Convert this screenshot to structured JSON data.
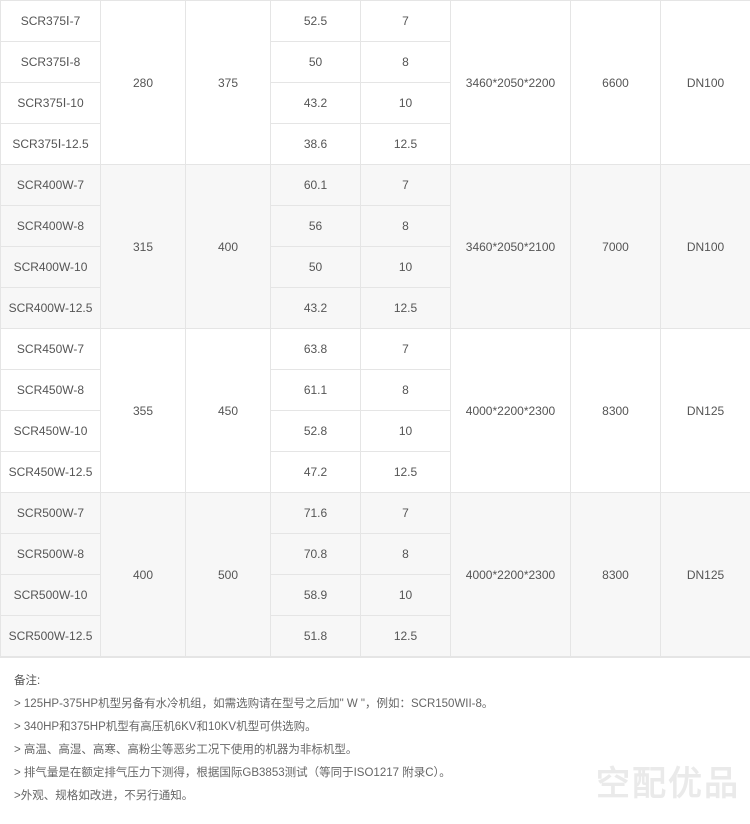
{
  "groups": [
    {
      "models": [
        "SCR375Ⅰ-7",
        "SCR375Ⅰ-8",
        "SCR375Ⅰ-10",
        "SCR375Ⅰ-12.5"
      ],
      "col2": "280",
      "col3": "375",
      "col4": [
        "52.5",
        "50",
        "43.2",
        "38.6"
      ],
      "col5": [
        "7",
        "8",
        "10",
        "12.5"
      ],
      "col6": "3460*2050*2200",
      "col7": "6600",
      "col8": "DN100",
      "shade": "odd"
    },
    {
      "models": [
        "SCR400W-7",
        "SCR400W-8",
        "SCR400W-10",
        "SCR400W-12.5"
      ],
      "col2": "315",
      "col3": "400",
      "col4": [
        "60.1",
        "56",
        "50",
        "43.2"
      ],
      "col5": [
        "7",
        "8",
        "10",
        "12.5"
      ],
      "col6": "3460*2050*2100",
      "col7": "7000",
      "col8": "DN100",
      "shade": "even"
    },
    {
      "models": [
        "SCR450W-7",
        "SCR450W-8",
        "SCR450W-10",
        "SCR450W-12.5"
      ],
      "col2": "355",
      "col3": "450",
      "col4": [
        "63.8",
        "61.1",
        "52.8",
        "47.2"
      ],
      "col5": [
        "7",
        "8",
        "10",
        "12.5"
      ],
      "col6": "4000*2200*2300",
      "col7": "8300",
      "col8": "DN125",
      "shade": "odd"
    },
    {
      "models": [
        "SCR500W-7",
        "SCR500W-8",
        "SCR500W-10",
        "SCR500W-12.5"
      ],
      "col2": "400",
      "col3": "500",
      "col4": [
        "71.6",
        "70.8",
        "58.9",
        "51.8"
      ],
      "col5": [
        "7",
        "8",
        "10",
        "12.5"
      ],
      "col6": "4000*2200*2300",
      "col7": "8300",
      "col8": "DN125",
      "shade": "even"
    }
  ],
  "notes": {
    "title": "备注:",
    "lines": [
      "> 125HP-375HP机型另备有水冷机组，如需选购请在型号之后加\" W \"，例如：SCR150WII-8。",
      "> 340HP和375HP机型有高压机6KV和10KV机型可供选购。",
      "> 高温、高湿、高寒、高粉尘等恶劣工况下使用的机器为非标机型。",
      "> 排气量是在额定排气压力下测得，根据国际GB3853测试（等同于ISO1217 附录C）。",
      ">外观、规格如改进，不另行通知。"
    ]
  },
  "watermark": "空配优品"
}
